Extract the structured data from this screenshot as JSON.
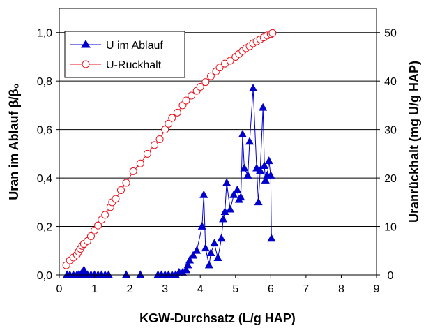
{
  "chart_data": {
    "type": "line",
    "title": "",
    "xlabel": "KGW-Durchsatz (L/g HAP)",
    "ylabel": "Uran im Ablauf β/β₀",
    "y2label": "Uranrückhalt (mg U/g HAP)",
    "xlim": [
      0,
      9
    ],
    "ylim": [
      0,
      1.1
    ],
    "y2lim": [
      0,
      55
    ],
    "x_ticks": [
      "0",
      "1",
      "2",
      "3",
      "4",
      "5",
      "6",
      "7",
      "8",
      "9"
    ],
    "y_ticks": [
      "0,0",
      "0,2",
      "0,4",
      "0,6",
      "0,8",
      "1,0"
    ],
    "y2_ticks": [
      "0",
      "10",
      "20",
      "30",
      "40",
      "50"
    ],
    "grid": "horizontal",
    "legend_position": "top-left",
    "series": [
      {
        "name": "U im Ablauf",
        "axis": "left",
        "color": "#0000cc",
        "marker": "filled-triangle",
        "points": [
          [
            0.22,
            0.0
          ],
          [
            0.3,
            0.0
          ],
          [
            0.4,
            0.0
          ],
          [
            0.5,
            0.0
          ],
          [
            0.55,
            0.0
          ],
          [
            0.6,
            0.0
          ],
          [
            0.65,
            0.01
          ],
          [
            0.7,
            0.02
          ],
          [
            0.75,
            0.0
          ],
          [
            0.8,
            0.0
          ],
          [
            0.9,
            0.0
          ],
          [
            1.0,
            0.0
          ],
          [
            1.1,
            0.0
          ],
          [
            1.2,
            0.0
          ],
          [
            1.3,
            0.0
          ],
          [
            1.4,
            0.0
          ],
          [
            1.9,
            0.0
          ],
          [
            2.3,
            0.0
          ],
          [
            2.8,
            0.0
          ],
          [
            2.9,
            0.0
          ],
          [
            3.0,
            0.0
          ],
          [
            3.1,
            0.0
          ],
          [
            3.2,
            0.0
          ],
          [
            3.3,
            0.0
          ],
          [
            3.4,
            0.01
          ],
          [
            3.5,
            0.01
          ],
          [
            3.6,
            0.02
          ],
          [
            3.65,
            0.04
          ],
          [
            3.7,
            0.06
          ],
          [
            3.8,
            0.08
          ],
          [
            3.9,
            0.1
          ],
          [
            4.05,
            0.2
          ],
          [
            4.1,
            0.33
          ],
          [
            4.15,
            0.11
          ],
          [
            4.25,
            0.04
          ],
          [
            4.3,
            0.09
          ],
          [
            4.4,
            0.13
          ],
          [
            4.5,
            0.07
          ],
          [
            4.6,
            0.15
          ],
          [
            4.65,
            0.23
          ],
          [
            4.7,
            0.26
          ],
          [
            4.75,
            0.38
          ],
          [
            4.85,
            0.27
          ],
          [
            4.95,
            0.33
          ],
          [
            5.05,
            0.35
          ],
          [
            5.1,
            0.31
          ],
          [
            5.15,
            0.32
          ],
          [
            5.2,
            0.58
          ],
          [
            5.25,
            0.44
          ],
          [
            5.35,
            0.41
          ],
          [
            5.4,
            0.55
          ],
          [
            5.5,
            0.77
          ],
          [
            5.6,
            0.44
          ],
          [
            5.65,
            0.3
          ],
          [
            5.7,
            0.43
          ],
          [
            5.78,
            0.69
          ],
          [
            5.82,
            0.45
          ],
          [
            5.85,
            0.39
          ],
          [
            5.9,
            0.41
          ],
          [
            5.95,
            0.47
          ],
          [
            6.0,
            0.41
          ],
          [
            6.02,
            0.15
          ]
        ]
      },
      {
        "name": "U-Rückhalt",
        "axis": "right",
        "color": "#e8141e",
        "marker": "open-circle",
        "points": [
          [
            0.2,
            2.0
          ],
          [
            0.3,
            3.0
          ],
          [
            0.4,
            3.6
          ],
          [
            0.5,
            4.2
          ],
          [
            0.55,
            4.8
          ],
          [
            0.6,
            5.4
          ],
          [
            0.65,
            6.0
          ],
          [
            0.7,
            6.4
          ],
          [
            0.8,
            7.0
          ],
          [
            0.9,
            8.0
          ],
          [
            1.0,
            9.2
          ],
          [
            1.1,
            10.2
          ],
          [
            1.2,
            11.4
          ],
          [
            1.3,
            12.4
          ],
          [
            1.45,
            14.0
          ],
          [
            1.5,
            15.0
          ],
          [
            1.6,
            15.7
          ],
          [
            1.75,
            17.5
          ],
          [
            1.9,
            19.0
          ],
          [
            2.1,
            21.4
          ],
          [
            2.3,
            23.0
          ],
          [
            2.5,
            25.0
          ],
          [
            2.7,
            26.8
          ],
          [
            2.85,
            28.0
          ],
          [
            3.0,
            30.0
          ],
          [
            3.1,
            31.2
          ],
          [
            3.2,
            32.4
          ],
          [
            3.35,
            33.5
          ],
          [
            3.5,
            35.0
          ],
          [
            3.6,
            36.0
          ],
          [
            3.75,
            37.0
          ],
          [
            3.9,
            38.0
          ],
          [
            4.0,
            38.8
          ],
          [
            4.15,
            39.8
          ],
          [
            4.3,
            41.0
          ],
          [
            4.45,
            42.0
          ],
          [
            4.55,
            42.8
          ],
          [
            4.7,
            43.6
          ],
          [
            4.85,
            44.2
          ],
          [
            5.0,
            45.0
          ],
          [
            5.1,
            45.6
          ],
          [
            5.2,
            46.2
          ],
          [
            5.3,
            46.8
          ],
          [
            5.4,
            47.2
          ],
          [
            5.5,
            47.8
          ],
          [
            5.6,
            48.2
          ],
          [
            5.7,
            48.6
          ],
          [
            5.8,
            49.0
          ],
          [
            5.9,
            49.4
          ],
          [
            6.0,
            49.7
          ],
          [
            6.05,
            49.9
          ]
        ]
      }
    ]
  }
}
